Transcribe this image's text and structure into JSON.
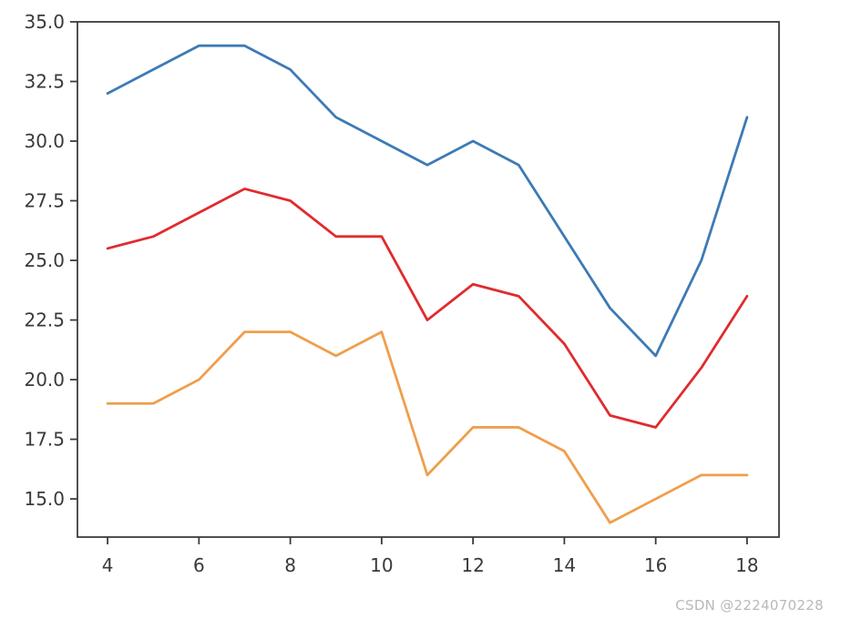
{
  "chart_data": {
    "type": "line",
    "title": "",
    "xlabel": "",
    "ylabel": "",
    "grid": false,
    "legend": null,
    "x": [
      4,
      5,
      6,
      7,
      8,
      9,
      10,
      11,
      12,
      13,
      14,
      15,
      16,
      17,
      18
    ],
    "series": [
      {
        "name": "blue-series",
        "color": "#3d7ab5",
        "values": [
          32,
          33,
          34,
          34,
          33,
          31,
          30,
          29,
          30,
          29,
          26,
          23,
          21,
          25,
          31
        ]
      },
      {
        "name": "red-series",
        "color": "#e02b2e",
        "values": [
          25.5,
          26,
          27,
          28,
          27.5,
          26,
          26,
          22.5,
          24,
          23.5,
          21.5,
          18.5,
          18,
          20.5,
          23.5
        ]
      },
      {
        "name": "orange-series",
        "color": "#f09e4c",
        "values": [
          19,
          19,
          20,
          22,
          22,
          21,
          22,
          16,
          18,
          18,
          17,
          14,
          15,
          16,
          16
        ]
      }
    ],
    "xticks": [
      4,
      6,
      8,
      10,
      12,
      14,
      16,
      18
    ],
    "xtick_labels": [
      "4",
      "6",
      "8",
      "10",
      "12",
      "14",
      "16",
      "18"
    ],
    "yticks": [
      35.0,
      32.5,
      30.0,
      27.5,
      25.0,
      22.5,
      20.0,
      17.5,
      15.0
    ],
    "ytick_labels": [
      "35.0",
      "32.5",
      "30.0",
      "27.5",
      "25.0",
      "22.5",
      "20.0",
      "17.5",
      "15.0"
    ],
    "xlim": [
      3.34,
      18.7
    ],
    "ylim": [
      13.4,
      35.0
    ],
    "axis_color": "#3c3c3c",
    "tick_label_color": "#3a3a3a",
    "line_width": 2.8
  },
  "watermark": {
    "text": "CSDN @2224070228"
  }
}
